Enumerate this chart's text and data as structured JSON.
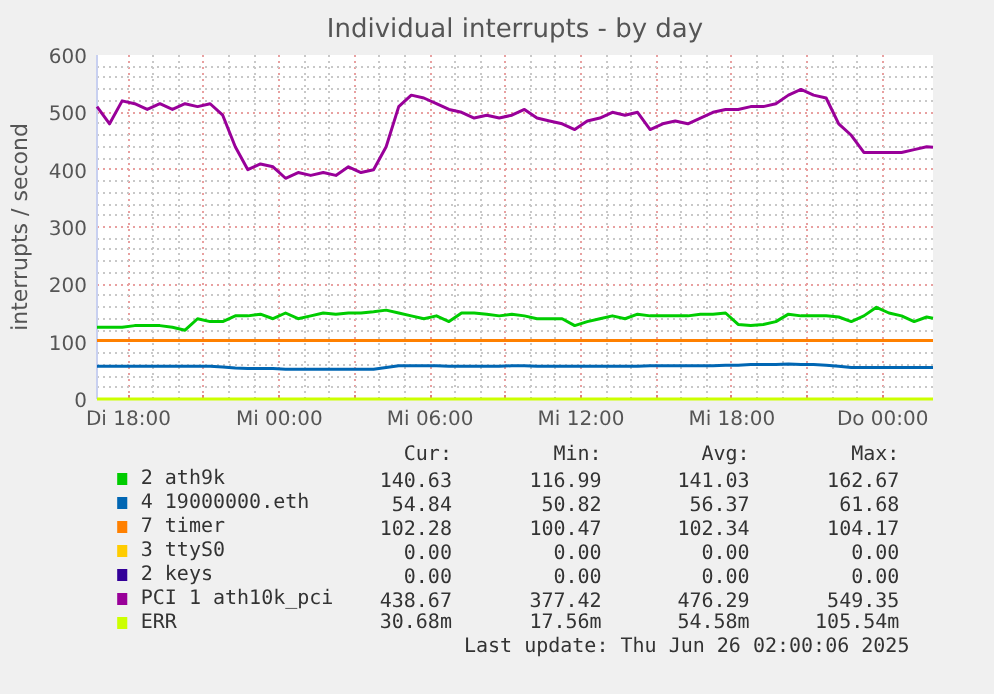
{
  "chart_data": {
    "type": "line",
    "title": "Individual interrupts - by day",
    "ylabel": "interrupts / second",
    "x": [
      "2025-06-24T16:45",
      "2025-06-24T17:15",
      "2025-06-24T17:45",
      "2025-06-24T18:15",
      "2025-06-24T18:45",
      "2025-06-24T19:15",
      "2025-06-24T19:45",
      "2025-06-24T20:15",
      "2025-06-24T20:45",
      "2025-06-24T21:15",
      "2025-06-24T21:45",
      "2025-06-24T22:15",
      "2025-06-24T22:45",
      "2025-06-24T23:15",
      "2025-06-24T23:45",
      "2025-06-25T00:15",
      "2025-06-25T00:45",
      "2025-06-25T01:15",
      "2025-06-25T01:45",
      "2025-06-25T02:15",
      "2025-06-25T02:45",
      "2025-06-25T03:15",
      "2025-06-25T03:45",
      "2025-06-25T04:15",
      "2025-06-25T04:45",
      "2025-06-25T05:15",
      "2025-06-25T05:45",
      "2025-06-25T06:15",
      "2025-06-25T06:45",
      "2025-06-25T07:15",
      "2025-06-25T07:45",
      "2025-06-25T08:15",
      "2025-06-25T08:45",
      "2025-06-25T09:15",
      "2025-06-25T09:45",
      "2025-06-25T10:15",
      "2025-06-25T10:45",
      "2025-06-25T11:15",
      "2025-06-25T11:45",
      "2025-06-25T12:15",
      "2025-06-25T12:45",
      "2025-06-25T13:15",
      "2025-06-25T13:45",
      "2025-06-25T14:15",
      "2025-06-25T14:45",
      "2025-06-25T15:15",
      "2025-06-25T15:45",
      "2025-06-25T16:15",
      "2025-06-25T16:45",
      "2025-06-25T17:15",
      "2025-06-25T17:45",
      "2025-06-25T18:15",
      "2025-06-25T18:45",
      "2025-06-25T19:15",
      "2025-06-25T19:45",
      "2025-06-25T20:15",
      "2025-06-25T20:45",
      "2025-06-25T21:15",
      "2025-06-25T21:45",
      "2025-06-25T22:15",
      "2025-06-25T22:45",
      "2025-06-25T23:15",
      "2025-06-25T23:45",
      "2025-06-26T00:15",
      "2025-06-26T00:45",
      "2025-06-26T01:15",
      "2025-06-26T01:45",
      "2025-06-26T02:00"
    ],
    "series": [
      {
        "name": "2 ath9k",
        "color": "#00cc00",
        "values": [
          125,
          125,
          125,
          128,
          128,
          128,
          125,
          120,
          140,
          135,
          135,
          145,
          145,
          148,
          140,
          150,
          140,
          145,
          150,
          148,
          150,
          150,
          152,
          155,
          150,
          145,
          140,
          145,
          135,
          150,
          150,
          148,
          145,
          148,
          145,
          140,
          140,
          140,
          128,
          135,
          140,
          145,
          140,
          148,
          145,
          145,
          145,
          145,
          148,
          148,
          150,
          130,
          128,
          130,
          135,
          148,
          145,
          145,
          145,
          143,
          135,
          145,
          160,
          150,
          145,
          135,
          143,
          141
        ]
      },
      {
        "name": "4 19000000.eth",
        "color": "#0066b3",
        "values": [
          57,
          57,
          57,
          57,
          57,
          57,
          57,
          57,
          57,
          57,
          56,
          54,
          53,
          53,
          53,
          52,
          52,
          52,
          52,
          52,
          52,
          52,
          52,
          55,
          58,
          58,
          58,
          58,
          57,
          57,
          57,
          57,
          57,
          58,
          58,
          57,
          57,
          57,
          57,
          57,
          57,
          57,
          57,
          57,
          58,
          58,
          58,
          58,
          58,
          58,
          59,
          59,
          60,
          60,
          60,
          61,
          60,
          60,
          59,
          57,
          55,
          55,
          55,
          55,
          55,
          55,
          55,
          55
        ]
      },
      {
        "name": "7 timer",
        "color": "#ff8000",
        "values": [
          102,
          102,
          102,
          102,
          102,
          102,
          102,
          102,
          102,
          102,
          102,
          102,
          102,
          102,
          102,
          102,
          102,
          102,
          102,
          102,
          102,
          102,
          102,
          102,
          102,
          102,
          102,
          102,
          102,
          102,
          102,
          102,
          102,
          102,
          102,
          102,
          102,
          102,
          102,
          102,
          102,
          102,
          102,
          102,
          102,
          102,
          102,
          102,
          102,
          102,
          102,
          102,
          102,
          102,
          102,
          102,
          102,
          102,
          102,
          102,
          102,
          102,
          102,
          102,
          102,
          102,
          102,
          102
        ]
      },
      {
        "name": "3 ttyS0",
        "color": "#ffcc00",
        "values": [
          null,
          null,
          null,
          null,
          null,
          null,
          null,
          null,
          null,
          null,
          null,
          null,
          null,
          null,
          null,
          null,
          null,
          null,
          null,
          null,
          null,
          null,
          null,
          null,
          null,
          null,
          null,
          null,
          null,
          null,
          null,
          null,
          null,
          null,
          null,
          null,
          null,
          null,
          null,
          null,
          null,
          null,
          null,
          null,
          null,
          null,
          null,
          null,
          null,
          null,
          null,
          null,
          null,
          null,
          null,
          null,
          null,
          null,
          null,
          null,
          null,
          null,
          null,
          null,
          null,
          null,
          null,
          null
        ]
      },
      {
        "name": "2 keys",
        "color": "#330099",
        "values": [
          null,
          null,
          null,
          null,
          null,
          null,
          null,
          null,
          null,
          null,
          null,
          null,
          null,
          null,
          null,
          null,
          null,
          null,
          null,
          null,
          null,
          null,
          null,
          null,
          null,
          null,
          null,
          null,
          null,
          null,
          null,
          null,
          null,
          null,
          null,
          null,
          null,
          null,
          null,
          null,
          null,
          null,
          null,
          null,
          null,
          null,
          null,
          null,
          null,
          null,
          null,
          null,
          null,
          null,
          null,
          null,
          null,
          null,
          null,
          null,
          null,
          null,
          null,
          null,
          null,
          null,
          null,
          null
        ]
      },
      {
        "name": "PCI 1 ath10k_pci",
        "color": "#990099",
        "values": [
          510,
          480,
          520,
          515,
          505,
          515,
          505,
          515,
          510,
          515,
          495,
          440,
          400,
          410,
          405,
          385,
          395,
          390,
          395,
          390,
          405,
          395,
          400,
          440,
          510,
          530,
          525,
          515,
          505,
          500,
          490,
          495,
          490,
          495,
          505,
          490,
          485,
          480,
          470,
          485,
          490,
          500,
          495,
          500,
          470,
          480,
          485,
          480,
          490,
          500,
          505,
          505,
          510,
          510,
          515,
          530,
          540,
          530,
          525,
          480,
          460,
          430,
          430,
          430,
          430,
          435,
          440,
          439
        ]
      },
      {
        "name": "ERR",
        "color": "#ccff00",
        "values": [
          0,
          0,
          0,
          0,
          0,
          0,
          0,
          0,
          0,
          0,
          0,
          0,
          0,
          0,
          0,
          0,
          0,
          0,
          0,
          0,
          0,
          0,
          0,
          0,
          0,
          0,
          0,
          0,
          0,
          0,
          0,
          0,
          0,
          0,
          0,
          0,
          0,
          0,
          0,
          0,
          0,
          0,
          0,
          0,
          0,
          0,
          0,
          0,
          0,
          0,
          0,
          0,
          0,
          0,
          0,
          0,
          0,
          0,
          0,
          0,
          0,
          0,
          0,
          0,
          0,
          0,
          0,
          0
        ]
      }
    ],
    "xlim": [
      "2025-06-24T16:45",
      "2025-06-26T02:00"
    ],
    "xticks": [
      {
        "value": "2025-06-24T18:00",
        "label": "Di 18:00"
      },
      {
        "value": "2025-06-24T21:00",
        "label": null
      },
      {
        "value": "2025-06-25T00:00",
        "label": "Mi 00:00"
      },
      {
        "value": "2025-06-25T03:00",
        "label": null
      },
      {
        "value": "2025-06-25T06:00",
        "label": "Mi 06:00"
      },
      {
        "value": "2025-06-25T09:00",
        "label": null
      },
      {
        "value": "2025-06-25T12:00",
        "label": "Mi 12:00"
      },
      {
        "value": "2025-06-25T15:00",
        "label": null
      },
      {
        "value": "2025-06-25T18:00",
        "label": "Mi 18:00"
      },
      {
        "value": "2025-06-25T21:00",
        "label": null
      },
      {
        "value": "2025-06-26T00:00",
        "label": "Do 00:00"
      }
    ],
    "ylim": [
      0,
      600
    ],
    "yticks": [
      0,
      100,
      200,
      300,
      400,
      500,
      600
    ],
    "grid": true,
    "legend": "bottom",
    "marker": "none",
    "line_style": "solid",
    "annotations": [
      "Cur:",
      "Min:",
      "Avg:",
      "Max:",
      "140.63",
      "116.99",
      "141.03",
      "162.67",
      "54.84",
      "50.82",
      "56.37",
      "61.68",
      "102.28",
      "100.47",
      "102.34",
      "104.17",
      "0.00",
      "0.00",
      "0.00",
      "0.00",
      "0.00",
      "0.00",
      "0.00",
      "0.00",
      "438.67",
      "377.42",
      "476.29",
      "549.35",
      "30.68m",
      "17.56m",
      "54.58m",
      "105.54m",
      "Last update: Thu Jun 26 02:00:06 2025"
    ]
  }
}
